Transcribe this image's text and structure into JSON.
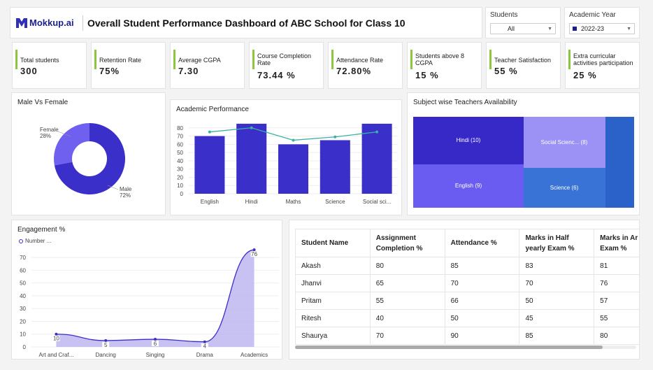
{
  "header": {
    "logo": "Mokkup.ai",
    "title": "Overall Student Performance Dashboard of ABC School for Class 10"
  },
  "filters": {
    "students": {
      "label": "Students",
      "value": "All"
    },
    "year": {
      "label": "Academic Year",
      "value": "2022-23"
    }
  },
  "kpis": [
    {
      "label": "Total students",
      "value": "300"
    },
    {
      "label": "Retention Rate",
      "value": "75%"
    },
    {
      "label": "Average CGPA",
      "value": "7.30"
    },
    {
      "label": "Course Completion Rate",
      "value": "73.44 %"
    },
    {
      "label": "Attendance Rate",
      "value": "72.80%"
    },
    {
      "label": "Students above 8 CGPA",
      "value": "15 %"
    },
    {
      "label": "Teacher Satisfaction",
      "value": "55 %"
    },
    {
      "label": "Extra curricular activities participation",
      "value": "25 %"
    }
  ],
  "colors": {
    "accent": "#8cc63f",
    "primary": "#3b2fc9",
    "light": "#7b6ff0",
    "line": "#3bb3a3"
  },
  "chart_data": [
    {
      "type": "pie",
      "title": "Male Vs Female",
      "slices": [
        {
          "name": "Female",
          "value": 28,
          "label": "28%"
        },
        {
          "name": "Male",
          "value": 72,
          "label": "72%"
        }
      ]
    },
    {
      "type": "bar",
      "title": "Academic Performance",
      "categories": [
        "English",
        "Hindi",
        "Maths",
        "Science",
        "Social sci..."
      ],
      "values": [
        70,
        85,
        60,
        65,
        85
      ],
      "line_values": [
        75,
        80,
        65,
        69,
        75
      ],
      "yticks": [
        "0",
        "10",
        "20",
        "30",
        "40",
        "50",
        "60",
        "70",
        "80"
      ],
      "ylim": [
        0,
        90
      ]
    },
    {
      "type": "heatmap",
      "title": "Subject wise Teachers Availability",
      "items": [
        {
          "label": "Hindi (10)",
          "value": 10
        },
        {
          "label": "English (9)",
          "value": 9
        },
        {
          "label": "Social Scienc... (8)",
          "value": 8
        },
        {
          "label": "Science (6)",
          "value": 6
        }
      ]
    },
    {
      "type": "area",
      "title": "Engagement %",
      "legend": "Number ...",
      "categories": [
        "Art and Craf...",
        "Dancing",
        "Singing",
        "Drama",
        "Academics"
      ],
      "values": [
        10,
        5,
        6,
        4,
        76
      ],
      "yticks": [
        "0",
        "10",
        "20",
        "30",
        "40",
        "50",
        "60",
        "70"
      ],
      "ylim": [
        0,
        75
      ]
    },
    {
      "type": "table",
      "columns": [
        "Student Name",
        "Assignment Completion %",
        "Attendance %",
        "Marks in Half yearly Exam %",
        "Marks in Ar Exam %"
      ],
      "rows": [
        [
          "Akash",
          "80",
          "85",
          "83",
          "81"
        ],
        [
          "Jhanvi",
          "65",
          "70",
          "70",
          "76"
        ],
        [
          "Pritam",
          "55",
          "66",
          "50",
          "57"
        ],
        [
          "Ritesh",
          "40",
          "50",
          "45",
          "55"
        ],
        [
          "Shaurya",
          "70",
          "90",
          "85",
          "80"
        ]
      ]
    }
  ]
}
